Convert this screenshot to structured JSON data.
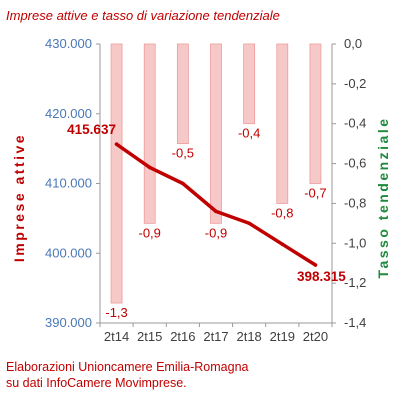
{
  "chart_data": {
    "type": "bar+line",
    "title": "Imprese attive e tasso di variazione tendenziale",
    "categories": [
      "2t14",
      "2t15",
      "2t16",
      "2t17",
      "2t18",
      "2t19",
      "2t20"
    ],
    "series": [
      {
        "name": "Imprese attive",
        "type": "line",
        "axis": "left",
        "color": "#c00000",
        "values": [
          415637,
          412300,
          410000,
          406000,
          404300,
          401300,
          398315
        ],
        "labels": [
          "415.637",
          null,
          null,
          null,
          null,
          null,
          "398.315"
        ]
      },
      {
        "name": "Tasso tendenziale",
        "type": "bar",
        "axis": "right",
        "color": "#f7c8c8",
        "values": [
          -1.3,
          -0.9,
          -0.5,
          -0.9,
          -0.4,
          -0.8,
          -0.7
        ],
        "labels": [
          "-1,3",
          "-0,9",
          "-0,5",
          "-0,9",
          "-0,4",
          "-0,8",
          "-0,7"
        ]
      }
    ],
    "left_axis": {
      "label": "Imprese attive",
      "color": "#c00000",
      "tick_color": "#4a78b8",
      "ylim": [
        390000,
        430000
      ],
      "ticks": [
        "390.000",
        "400.000",
        "410.000",
        "420.000",
        "430.000"
      ]
    },
    "right_axis": {
      "label": "Tasso tendenziale",
      "color": "#1f8a3c",
      "ylim": [
        -1.4,
        0
      ],
      "ticks": [
        "0,0",
        "-0,2",
        "-0,4",
        "-0,6",
        "-0,8",
        "-1,0",
        "-1,2",
        "-1,4"
      ]
    },
    "grid": false,
    "legend": "none"
  },
  "source": {
    "line1": "Elaborazioni Unioncamere Emilia-Romagna",
    "line2": "su dati InfoCamere Movimprese."
  }
}
